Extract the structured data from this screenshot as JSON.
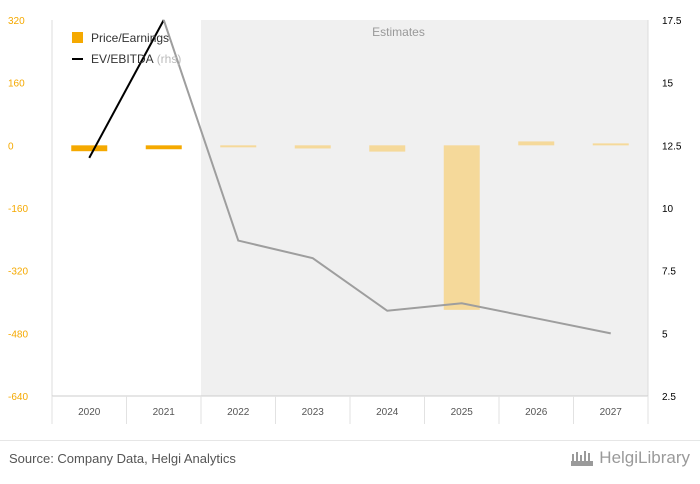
{
  "chart_data": {
    "type": "bar",
    "categories": [
      "2020",
      "2021",
      "2022",
      "2023",
      "2024",
      "2025",
      "2026",
      "2027"
    ],
    "estimates_from": "2022",
    "estimates_label": "Estimates",
    "series": [
      {
        "name": "Price/Earnings",
        "type": "bar",
        "axis": "left",
        "values": [
          -15,
          -10,
          -5,
          -8,
          -16,
          -420,
          10,
          5
        ]
      },
      {
        "name": "EV/EBITDA",
        "name_suffix": "(rhs)",
        "type": "line",
        "axis": "right",
        "values": [
          12.0,
          17.5,
          8.7,
          8.0,
          5.9,
          6.2,
          5.6,
          5.0
        ]
      }
    ],
    "y_left": {
      "min": -640,
      "max": 320,
      "ticks": [
        "320",
        "160",
        "0",
        "-160",
        "-320",
        "-480",
        "-640"
      ]
    },
    "y_right": {
      "min": 2.5,
      "max": 17.5,
      "ticks": [
        "17.5",
        "15",
        "12.5",
        "10",
        "7.5",
        "5",
        "2.5"
      ]
    },
    "colors": {
      "bar_actual": "#f5a900",
      "bar_estimate": "#f5d99a",
      "line_actual": "#000000",
      "line_estimate": "#9e9e9e",
      "estimate_background": "#f0f0f0",
      "left_axis_text": "#f5a900",
      "right_axis_text": "#000000"
    }
  },
  "footer": {
    "source": "Source: Company Data, Helgi Analytics",
    "brand": "HelgiLibrary"
  }
}
